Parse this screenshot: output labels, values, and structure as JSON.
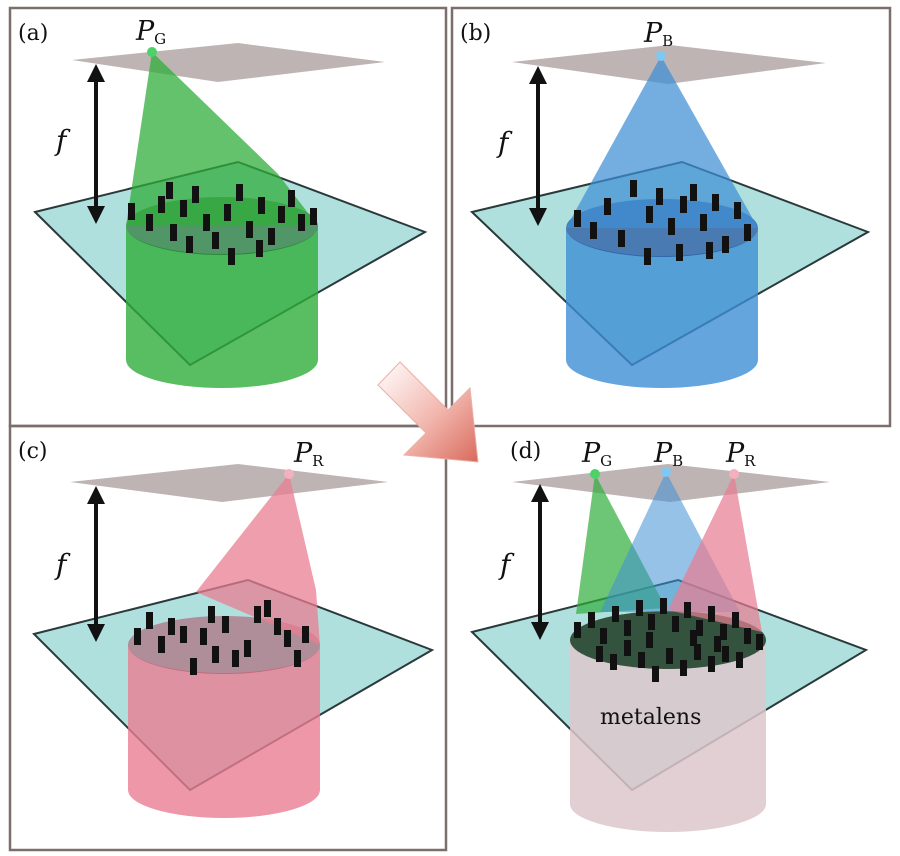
{
  "panels": [
    {
      "id": "a",
      "label": "(a)",
      "focus": {
        "main": "P",
        "sub": "G"
      },
      "distance_label": "f",
      "beam_color": "#2fae3a"
    },
    {
      "id": "b",
      "label": "(b)",
      "focus": {
        "main": "P",
        "sub": "B"
      },
      "distance_label": "f",
      "beam_color": "#3f8fd6"
    },
    {
      "id": "c",
      "label": "(c)",
      "focus": {
        "main": "P",
        "sub": "R"
      },
      "distance_label": "f",
      "beam_color": "#e87d92"
    },
    {
      "id": "d",
      "label": "(d)",
      "distance_label": "f",
      "lens_label": "metalens",
      "foci": [
        {
          "main": "P",
          "sub": "G",
          "color": "#2fae3a"
        },
        {
          "main": "P",
          "sub": "B",
          "color": "#3f8fd6"
        },
        {
          "main": "P",
          "sub": "R",
          "color": "#e87d92"
        }
      ]
    }
  ],
  "colors": {
    "plate": "#9fd9d6",
    "plate_edge": "#2a3a3a",
    "focal_plane": "#b3a7a7",
    "frame": "#7a6f6a",
    "arrow": "#e9a29a"
  }
}
